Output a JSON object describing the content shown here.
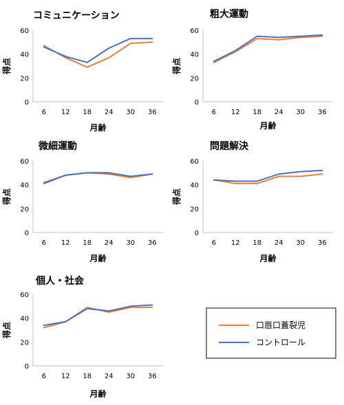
{
  "chart_data": [
    {
      "type": "line",
      "title": "コミュニケーション",
      "xlabel": "月齢",
      "ylabel": "得点",
      "x": [
        6,
        12,
        18,
        24,
        30,
        36
      ],
      "ylim": [
        0,
        60
      ],
      "yticks": [
        0,
        20,
        40,
        60
      ],
      "series": [
        {
          "name": "口唇口蓋裂児",
          "values": [
            47,
            37,
            29,
            37,
            49,
            50
          ]
        },
        {
          "name": "コントロール",
          "values": [
            46,
            38,
            33,
            45,
            53,
            53
          ]
        }
      ]
    },
    {
      "type": "line",
      "title": "粗大運動",
      "xlabel": "月齢",
      "ylabel": "得点",
      "x": [
        6,
        12,
        18,
        24,
        30,
        36
      ],
      "ylim": [
        0,
        60
      ],
      "yticks": [
        0,
        20,
        40,
        60
      ],
      "series": [
        {
          "name": "口唇口蓋裂児",
          "values": [
            33,
            42,
            53,
            52,
            54,
            55
          ]
        },
        {
          "name": "コントロール",
          "values": [
            34,
            43,
            55,
            54,
            55,
            56
          ]
        }
      ]
    },
    {
      "type": "line",
      "title": "微細運動",
      "xlabel": "月齢",
      "ylabel": "得点",
      "x": [
        6,
        12,
        18,
        24,
        30,
        36
      ],
      "ylim": [
        0,
        60
      ],
      "yticks": [
        0,
        20,
        40,
        60
      ],
      "series": [
        {
          "name": "口唇口蓋裂児",
          "values": [
            42,
            48,
            50,
            49,
            46,
            49
          ]
        },
        {
          "name": "コントロール",
          "values": [
            41,
            48,
            50,
            50,
            47,
            49
          ]
        }
      ]
    },
    {
      "type": "line",
      "title": "問題解決",
      "xlabel": "月齢",
      "ylabel": "得点",
      "x": [
        6,
        12,
        18,
        24,
        30,
        36
      ],
      "ylim": [
        0,
        60
      ],
      "yticks": [
        0,
        20,
        40,
        60
      ],
      "series": [
        {
          "name": "口唇口蓋裂児",
          "values": [
            44,
            41,
            41,
            47,
            47,
            49
          ]
        },
        {
          "name": "コントロール",
          "values": [
            44,
            43,
            43,
            49,
            51,
            52
          ]
        }
      ]
    },
    {
      "type": "line",
      "title": "個人・社会",
      "xlabel": "月齢",
      "ylabel": "得点",
      "x": [
        6,
        12,
        18,
        24,
        30,
        36
      ],
      "ylim": [
        0,
        60
      ],
      "yticks": [
        0,
        20,
        40,
        60
      ],
      "series": [
        {
          "name": "口唇口蓋裂児",
          "values": [
            32,
            37,
            49,
            45,
            49,
            49
          ]
        },
        {
          "name": "コントロール",
          "values": [
            34,
            37,
            48,
            46,
            50,
            51
          ]
        }
      ]
    }
  ],
  "legend": {
    "position": "bottom-right",
    "items": [
      {
        "label": "口唇口蓋裂児",
        "color": "#ED7D31"
      },
      {
        "label": "コントロール",
        "color": "#4472C4"
      }
    ]
  },
  "colors": {
    "series_1": "#ED7D31",
    "series_2": "#4472C4",
    "axis": "#BFBFBF"
  }
}
